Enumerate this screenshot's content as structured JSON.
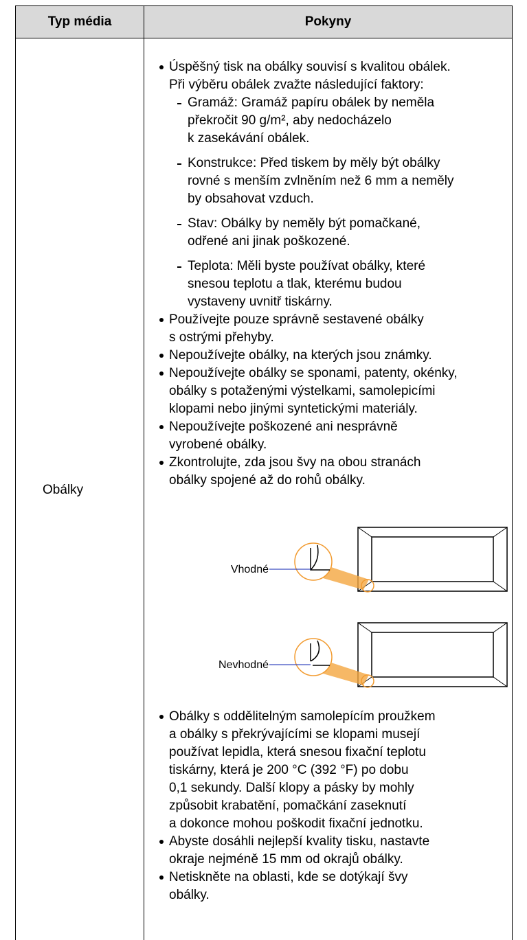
{
  "table": {
    "header": [
      "Typ média",
      "Pokyny"
    ],
    "row_label": "Obálky",
    "pokyny": {
      "bullets_top": [
        {
          "lines": [
            "Úspěšný tisk na obálky souvisí s kvalitou obálek.",
            "Při výběru obálek zvažte následující faktory:"
          ],
          "subitems": [
            {
              "lines": [
                "Gramáž: Gramáž papíru obálek by neměla",
                "překročit 90 g/m², aby nedocházelo",
                "k zasekávání obálek."
              ]
            },
            {
              "lines": [
                "Konstrukce: Před tiskem by měly být obálky",
                "rovné s menším zvlněním než 6 mm a neměly",
                "by obsahovat vzduch."
              ]
            },
            {
              "lines": [
                "Stav: Obálky by neměly být pomačkané,",
                "odřené ani jinak poškozené."
              ]
            },
            {
              "lines": [
                "Teplota: Měli byste používat obálky, které",
                "snesou teplotu a tlak, kterému budou",
                "vystaveny uvnitř tiskárny."
              ]
            }
          ]
        },
        {
          "lines": [
            "Používejte pouze správně sestavené obálky",
            "s ostrými přehyby."
          ]
        },
        {
          "lines": [
            "Nepoužívejte obálky, na kterých jsou známky."
          ]
        },
        {
          "lines": [
            "Nepoužívejte obálky se sponami, patenty, okénky,",
            "obálky s potaženými výstelkami, samolepicími",
            "klopami nebo jinými syntetickými materiály."
          ]
        },
        {
          "lines": [
            "Nepoužívejte poškozené ani nesprávně",
            "vyrobené obálky."
          ]
        },
        {
          "lines": [
            "Zkontrolujte, zda jsou švy na obou stranách",
            "obálky spojené až do rohů obálky."
          ]
        }
      ],
      "figure": {
        "good": "Vhodné",
        "bad": "Nevhodné"
      },
      "bullets_bottom": [
        {
          "lines": [
            "Obálky s oddělitelným samolepícím proužkem",
            "a obálky s překrývajícími se klopami musejí",
            "používat lepidla, která snesou fixační teplotu",
            "tiskárny, která je 200 °C (392 °F) po dobu",
            "0,1 sekundy. Další klopy a pásky by mohly",
            "způsobit krabatění, pomačkání zaseknutí",
            "a dokonce mohou poškodit fixační jednotku."
          ]
        },
        {
          "lines": [
            "Abyste dosáhli nejlepší kvality tisku, nastavte",
            "okraje nejméně 15 mm od okrajů obálky."
          ]
        },
        {
          "lines": [
            "Netiskněte na oblasti, kde se dotýkají švy",
            "obálky."
          ]
        }
      ]
    }
  }
}
